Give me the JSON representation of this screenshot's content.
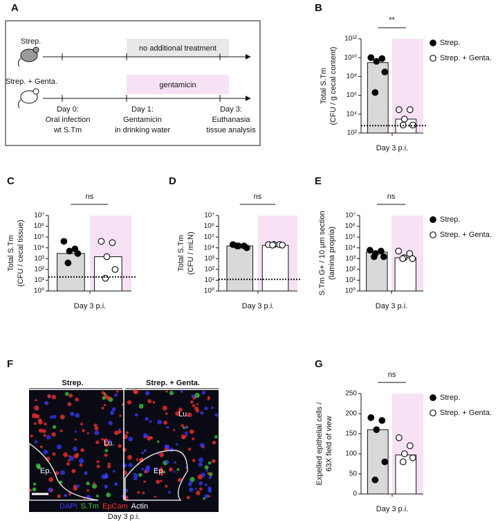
{
  "timeline": {
    "panel": "A",
    "groups": [
      "Strep.",
      "Strep. + Genta."
    ],
    "treatments": [
      "no additional treatment",
      "gentamicin"
    ],
    "days": [
      [
        "Day 0:",
        "Oral infection",
        "wt S.Tm"
      ],
      [
        "Day 1:",
        "Gentamicin",
        "in drinking water"
      ],
      [
        "Day 3:",
        "Euthanasia",
        "tissue analysis"
      ]
    ]
  },
  "chart_data": [
    {
      "type": "dotbar",
      "panel": "B",
      "ylabel": [
        "Total S.Tm",
        "(CFU / g cecal content)"
      ],
      "xlabel": "Day 3 p.i.",
      "yscale": "log",
      "ylim": [
        100,
        1000000000000
      ],
      "yticks": [
        {
          "value": 100,
          "label": "10²"
        },
        {
          "value": 10000,
          "label": "10⁴"
        },
        {
          "value": 1000000,
          "label": "10⁶"
        },
        {
          "value": 100000000,
          "label": "10⁸"
        },
        {
          "value": 10000000000,
          "label": "10¹⁰"
        },
        {
          "value": 1000000000000,
          "label": "10¹²"
        }
      ],
      "significance": "**",
      "detection_limit": 600,
      "shade_color": "#f7e1f4",
      "series": [
        {
          "name": "Strep.",
          "color": "#d9d9d9",
          "marker_fill": "#000000",
          "bar_value": 3000000000,
          "values": [
            10000000000,
            8000000000,
            4000000000,
            300000000,
            2000000
          ]
        },
        {
          "name": "Strep. + Genta.",
          "color": "#ffffff",
          "marker_fill": "#ffffff",
          "bar_value": 3000,
          "values": [
            30000,
            30000,
            3000,
            700,
            700
          ]
        }
      ]
    },
    {
      "type": "dotbar",
      "panel": "C",
      "ylabel": [
        "Total S.Tm",
        "(CFU / cecal tissue)"
      ],
      "xlabel": "Day 3 p.i.",
      "yscale": "log",
      "ylim": [
        1,
        10000000
      ],
      "yticks": [
        {
          "value": 1,
          "label": "10⁰"
        },
        {
          "value": 10,
          "label": "10¹"
        },
        {
          "value": 100,
          "label": "10²"
        },
        {
          "value": 1000,
          "label": "10³"
        },
        {
          "value": 10000,
          "label": "10⁴"
        },
        {
          "value": 100000,
          "label": "10⁵"
        },
        {
          "value": 1000000,
          "label": "10⁶"
        },
        {
          "value": 10000000,
          "label": "10⁷"
        }
      ],
      "significance": "ns",
      "detection_limit": 20,
      "shade_color": "#f7e1f4",
      "series": [
        {
          "color": "#d9d9d9",
          "marker_fill": "#000000",
          "bar_value": 3000,
          "values": [
            40000,
            8000,
            5000,
            3000,
            400
          ]
        },
        {
          "color": "#ffffff",
          "marker_fill": "#ffffff",
          "bar_value": 1500,
          "values": [
            40000,
            30000,
            1500,
            100,
            15
          ]
        }
      ]
    },
    {
      "type": "dotbar",
      "panel": "D",
      "ylabel": [
        "Total S.Tm",
        "(CFU / mLN)"
      ],
      "xlabel": "Day 3 p.i.",
      "yscale": "log",
      "ylim": [
        1,
        10000000
      ],
      "yticks": [
        {
          "value": 1,
          "label": "10⁰"
        },
        {
          "value": 10,
          "label": "10¹"
        },
        {
          "value": 100,
          "label": "10²"
        },
        {
          "value": 1000,
          "label": "10³"
        },
        {
          "value": 10000,
          "label": "10⁴"
        },
        {
          "value": 100000,
          "label": "10⁵"
        },
        {
          "value": 1000000,
          "label": "10⁶"
        },
        {
          "value": 10000000,
          "label": "10⁷"
        }
      ],
      "significance": "ns",
      "detection_limit": 12,
      "shade_color": "#f7e1f4",
      "series": [
        {
          "color": "#d9d9d9",
          "marker_fill": "#000000",
          "bar_value": 15000,
          "values": [
            20000,
            15000,
            15000,
            10000,
            15000
          ]
        },
        {
          "color": "#ffffff",
          "marker_fill": "#ffffff",
          "bar_value": 17000,
          "values": [
            20000,
            20000,
            20000,
            18000,
            18000
          ]
        }
      ]
    },
    {
      "type": "dotbar",
      "panel": "E",
      "ylabel": [
        "S.Tm G+ / 10 µm section",
        "(lamina propria)"
      ],
      "xlabel": "Day 3 p.i.",
      "yscale": "log",
      "ylim": [
        1,
        10000000
      ],
      "yticks": [
        {
          "value": 1,
          "label": "10⁰"
        },
        {
          "value": 10,
          "label": "10¹"
        },
        {
          "value": 100,
          "label": "10²"
        },
        {
          "value": 1000,
          "label": "10³"
        },
        {
          "value": 10000,
          "label": "10⁴"
        },
        {
          "value": 100000,
          "label": "10⁵"
        },
        {
          "value": 1000000,
          "label": "10⁶"
        },
        {
          "value": 10000000,
          "label": "10⁷"
        }
      ],
      "significance": "ns",
      "shade_color": "#f7e1f4",
      "series": [
        {
          "name": "Strep.",
          "color": "#d9d9d9",
          "marker_fill": "#000000",
          "bar_value": 4000,
          "values": [
            6000,
            5000,
            3000,
            1500,
            1500
          ]
        },
        {
          "name": "Strep. + Genta.",
          "color": "#ffffff",
          "marker_fill": "#ffffff",
          "bar_value": 1200,
          "values": [
            5000,
            3000,
            1200,
            1000,
            1000
          ]
        }
      ]
    },
    {
      "type": "dotbar",
      "panel": "G",
      "ylabel": [
        "Expelled epithelial cells /",
        "63X field of view"
      ],
      "xlabel": "Day 3 p.i.",
      "yscale": "linear",
      "ylim": [
        0,
        250
      ],
      "yticks": [
        0,
        50,
        100,
        150,
        200,
        250
      ],
      "significance": "ns",
      "shade_color": "#f7e1f4",
      "series": [
        {
          "name": "Strep.",
          "color": "#d9d9d9",
          "marker_fill": "#000000",
          "bar_value": 160,
          "values": [
            190,
            183,
            160,
            80,
            35
          ]
        },
        {
          "name": "Strep. + Genta.",
          "color": "#ffffff",
          "marker_fill": "#ffffff",
          "bar_value": 97,
          "values": [
            140,
            120,
            100,
            90,
            80
          ]
        }
      ]
    }
  ],
  "micrograph": {
    "panel": "F",
    "columns": [
      "Strep.",
      "Strep. + Genta."
    ],
    "labels": [
      "Lu.",
      "Ep.",
      "Lu.",
      "Ep."
    ],
    "stains": [
      {
        "name": "DAPI",
        "color": "#3a3aff"
      },
      {
        "name": "S.Tm",
        "color": "#3ccf3c"
      },
      {
        "name": "EpCam",
        "color": "#ff3030"
      },
      {
        "name": "Actin",
        "color": "#ffffff"
      }
    ],
    "xlabel": "Day 3 p.i."
  }
}
